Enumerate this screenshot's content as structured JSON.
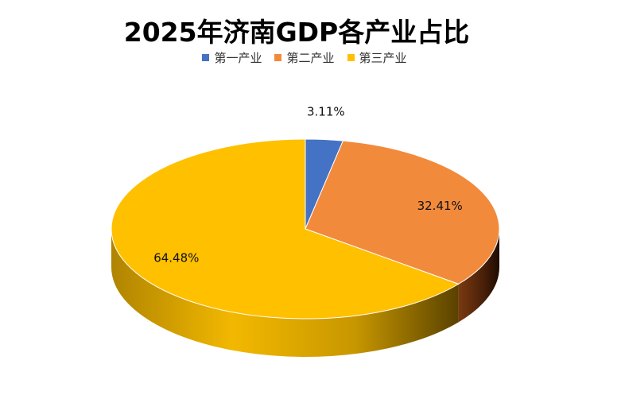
{
  "chart_data": {
    "type": "pie",
    "title": "2025年济南GDP各产业占比",
    "categories": [
      "第一产业",
      "第二产业",
      "第三产业"
    ],
    "values": [
      3.11,
      32.41,
      64.48
    ],
    "data_labels": [
      "3.11%",
      "32.41%",
      "64.48%"
    ],
    "colors": [
      "#4472C4",
      "#F28A3C",
      "#FFC000"
    ],
    "legend_position": "top",
    "style": "3d"
  }
}
